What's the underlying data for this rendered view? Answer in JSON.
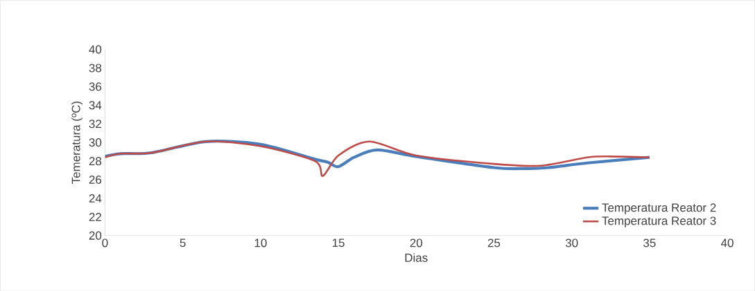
{
  "chart_data": {
    "type": "line",
    "xlabel": "Dias",
    "ylabel": "Temeratura (ºC)",
    "xlim": [
      0,
      40
    ],
    "ylim": [
      20,
      40
    ],
    "xticks": [
      0,
      5,
      10,
      15,
      20,
      25,
      30,
      35,
      40
    ],
    "yticks": [
      20,
      22,
      24,
      26,
      28,
      30,
      32,
      34,
      36,
      38,
      40
    ],
    "legend": "bottom right",
    "grid": false,
    "marker": "none",
    "series": [
      {
        "name": "Temperatura Reator 2",
        "color": "#4a7ebb",
        "x": [
          0,
          1,
          3,
          6.5,
          10,
          13.5,
          14.3,
          15,
          16,
          17.5,
          20,
          25,
          27,
          28.5,
          31,
          35
        ],
        "values": [
          28.5,
          28.8,
          28.9,
          30.1,
          29.8,
          28.2,
          27.9,
          27.4,
          28.4,
          29.2,
          28.5,
          27.3,
          27.2,
          27.3,
          27.8,
          28.4
        ]
      },
      {
        "name": "Temperatura Reator 3",
        "color": "#be4b48",
        "x": [
          0,
          1,
          3,
          6.5,
          10,
          13.5,
          14,
          15,
          17,
          20,
          25,
          28,
          31,
          32.5,
          35
        ],
        "values": [
          28.4,
          28.8,
          28.9,
          30.1,
          29.6,
          28.0,
          26.4,
          28.6,
          30.1,
          28.6,
          27.7,
          27.5,
          28.4,
          28.5,
          28.4
        ]
      }
    ]
  }
}
